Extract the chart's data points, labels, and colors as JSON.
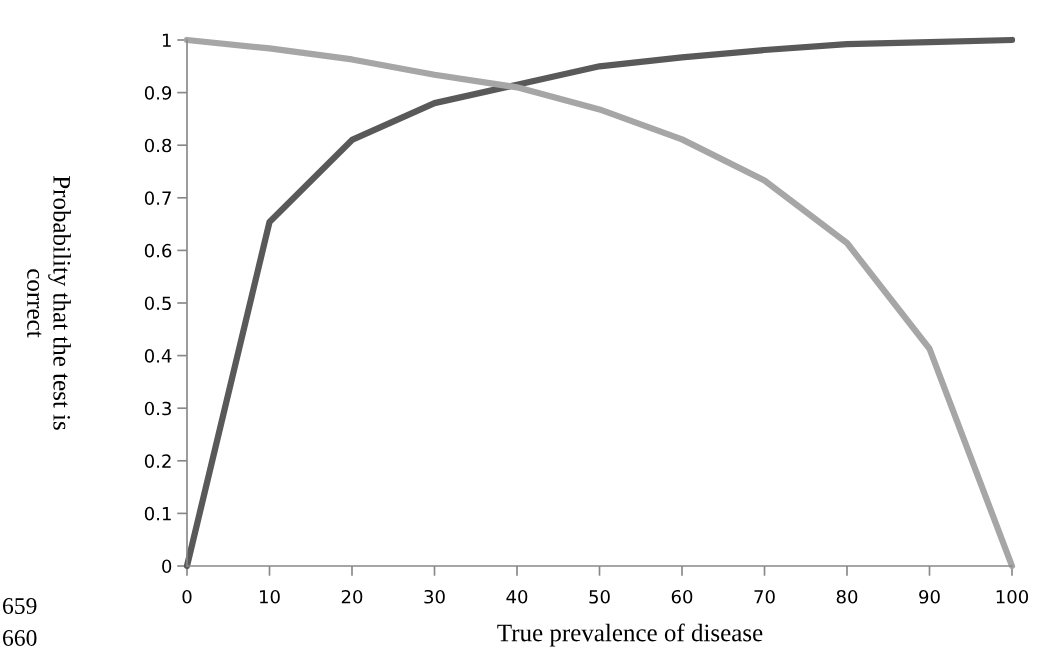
{
  "chart_data": {
    "type": "line",
    "xlabel": "True prevalence of disease",
    "ylabel": "Probability that the test is\ncorrect",
    "series": [
      {
        "color": "#595959",
        "x": [
          0,
          10,
          20,
          30,
          40,
          50,
          60,
          70,
          80,
          90,
          100
        ],
        "values": [
          0,
          0.654,
          0.81,
          0.88,
          0.915,
          0.95,
          0.967,
          0.981,
          0.992,
          0.996,
          1
        ]
      },
      {
        "color": "#a6a6a6",
        "x": [
          0,
          10,
          20,
          30,
          40,
          50,
          60,
          70,
          80,
          90,
          100
        ],
        "values": [
          1,
          0.984,
          0.963,
          0.934,
          0.91,
          0.868,
          0.811,
          0.733,
          0.614,
          0.413,
          0
        ]
      }
    ],
    "xlim": [
      0,
      100
    ],
    "xticks": [
      0,
      10,
      20,
      30,
      40,
      50,
      60,
      70,
      80,
      90,
      100
    ],
    "ylim": [
      0,
      1
    ],
    "yticks": [
      0,
      0.1,
      0.2,
      0.3,
      0.4,
      0.5,
      0.6,
      0.7,
      0.8,
      0.9,
      1
    ],
    "grid": false,
    "legend": false,
    "marker": "none",
    "line_style": "solid",
    "annotations": [
      "659",
      "660"
    ]
  }
}
